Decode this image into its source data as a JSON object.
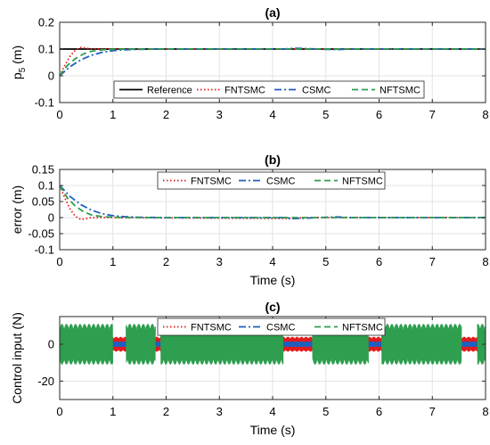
{
  "chart_data": [
    {
      "type": "line",
      "title": "(a)",
      "xlabel": "",
      "ylabel": "p_5 (m)",
      "ylabel_main": "p",
      "ylabel_sub": "5",
      "ylabel_unit": "(m)",
      "xlim": [
        0,
        8
      ],
      "ylim": [
        -0.1,
        0.2
      ],
      "xticks": [
        0,
        1,
        2,
        3,
        4,
        5,
        6,
        7,
        8
      ],
      "yticks": [
        -0.1,
        0,
        0.1,
        0.2
      ],
      "ytick_labels": [
        "-0.1",
        "0",
        "0.1",
        "0.2"
      ],
      "grid": true,
      "legend_position": "bottom",
      "legend_layout": "horizontal",
      "series": [
        {
          "name": "Reference",
          "color": "#000000",
          "style": "solid",
          "x": [
            0,
            8
          ],
          "y": [
            0.1,
            0.1
          ]
        },
        {
          "name": "FNTSMC",
          "color": "#e31a1c",
          "style": "dotted",
          "x": [
            0,
            0.1,
            0.2,
            0.3,
            0.4,
            0.5,
            0.6,
            0.8,
            1.0,
            8
          ],
          "y": [
            0,
            0.04,
            0.075,
            0.097,
            0.106,
            0.103,
            0.1,
            0.1,
            0.1,
            0.1
          ]
        },
        {
          "name": "CSMC",
          "color": "#1f5fbf",
          "style": "dashdot",
          "x": [
            0,
            0.2,
            0.4,
            0.6,
            0.8,
            1.0,
            1.2,
            1.5,
            2.0,
            4.2,
            4.4,
            4.6,
            5.0,
            5.2,
            5.5,
            8
          ],
          "y": [
            0,
            0.035,
            0.06,
            0.077,
            0.088,
            0.094,
            0.097,
            0.099,
            0.1,
            0.1,
            0.103,
            0.102,
            0.099,
            0.098,
            0.1,
            0.1
          ]
        },
        {
          "name": "NFTSMC",
          "color": "#2e9e4f",
          "style": "dashed",
          "x": [
            0,
            0.15,
            0.3,
            0.45,
            0.6,
            0.8,
            1.0,
            1.3,
            8
          ],
          "y": [
            0,
            0.04,
            0.065,
            0.082,
            0.092,
            0.097,
            0.099,
            0.1,
            0.1
          ]
        }
      ]
    },
    {
      "type": "line",
      "title": "(b)",
      "xlabel": "Time (s)",
      "ylabel": "error (m)",
      "xlim": [
        0,
        8
      ],
      "ylim": [
        -0.1,
        0.15
      ],
      "xticks": [
        0,
        1,
        2,
        3,
        4,
        5,
        6,
        7,
        8
      ],
      "yticks": [
        -0.1,
        -0.05,
        0,
        0.05,
        0.1,
        0.15
      ],
      "ytick_labels": [
        "-0.1",
        "-0.05",
        "0",
        "0.05",
        "0.1",
        "0.15"
      ],
      "grid": true,
      "legend_position": "top",
      "legend_layout": "horizontal",
      "series": [
        {
          "name": "FNTSMC",
          "color": "#e31a1c",
          "style": "dotted",
          "x": [
            0,
            0.1,
            0.2,
            0.3,
            0.4,
            0.5,
            0.6,
            0.8,
            1.0,
            4.4,
            4.5,
            4.6,
            8
          ],
          "y": [
            0.1,
            0.06,
            0.025,
            0.003,
            -0.006,
            -0.003,
            0,
            0,
            0,
            -0.003,
            -0.001,
            0,
            0
          ]
        },
        {
          "name": "CSMC",
          "color": "#1f5fbf",
          "style": "dashdot",
          "x": [
            0,
            0.2,
            0.4,
            0.6,
            0.8,
            1.0,
            1.2,
            1.5,
            2.0,
            4.2,
            4.4,
            4.6,
            5.0,
            5.2,
            5.5,
            8
          ],
          "y": [
            0.1,
            0.065,
            0.04,
            0.023,
            0.012,
            0.006,
            0.003,
            0.001,
            0,
            0,
            -0.003,
            -0.002,
            0.001,
            0.002,
            0,
            0
          ]
        },
        {
          "name": "NFTSMC",
          "color": "#2e9e4f",
          "style": "dashed",
          "x": [
            0,
            0.15,
            0.3,
            0.45,
            0.6,
            0.8,
            1.0,
            1.3,
            8
          ],
          "y": [
            0.1,
            0.06,
            0.035,
            0.018,
            0.008,
            0.003,
            0.001,
            0,
            0
          ]
        }
      ]
    },
    {
      "type": "line",
      "title": "(c)",
      "xlabel": "Time (s)",
      "ylabel": "Control input (N)",
      "xlim": [
        0,
        8
      ],
      "ylim": [
        -30,
        15
      ],
      "xticks": [
        0,
        1,
        2,
        3,
        4,
        5,
        6,
        7,
        8
      ],
      "yticks": [
        -20,
        0
      ],
      "ytick_labels": [
        "-20",
        "0"
      ],
      "grid": true,
      "legend_position": "top",
      "legend_layout": "horizontal",
      "series": [
        {
          "name": "FNTSMC",
          "color": "#e31a1c",
          "style": "dotted",
          "amplitude": 4,
          "segments": [
            [
              0,
              8
            ]
          ]
        },
        {
          "name": "CSMC",
          "color": "#1f5fbf",
          "style": "dashdot",
          "amplitude": 1.5,
          "segments": [
            [
              0,
              8
            ]
          ]
        },
        {
          "name": "NFTSMC",
          "color": "#2e9e4f",
          "style": "dashed",
          "amplitude": 11,
          "segments": [
            [
              0,
              1.0
            ],
            [
              1.25,
              1.8
            ],
            [
              1.9,
              4.2
            ],
            [
              4.75,
              5.8
            ],
            [
              6.05,
              7.55
            ],
            [
              7.85,
              8
            ]
          ]
        }
      ]
    }
  ]
}
